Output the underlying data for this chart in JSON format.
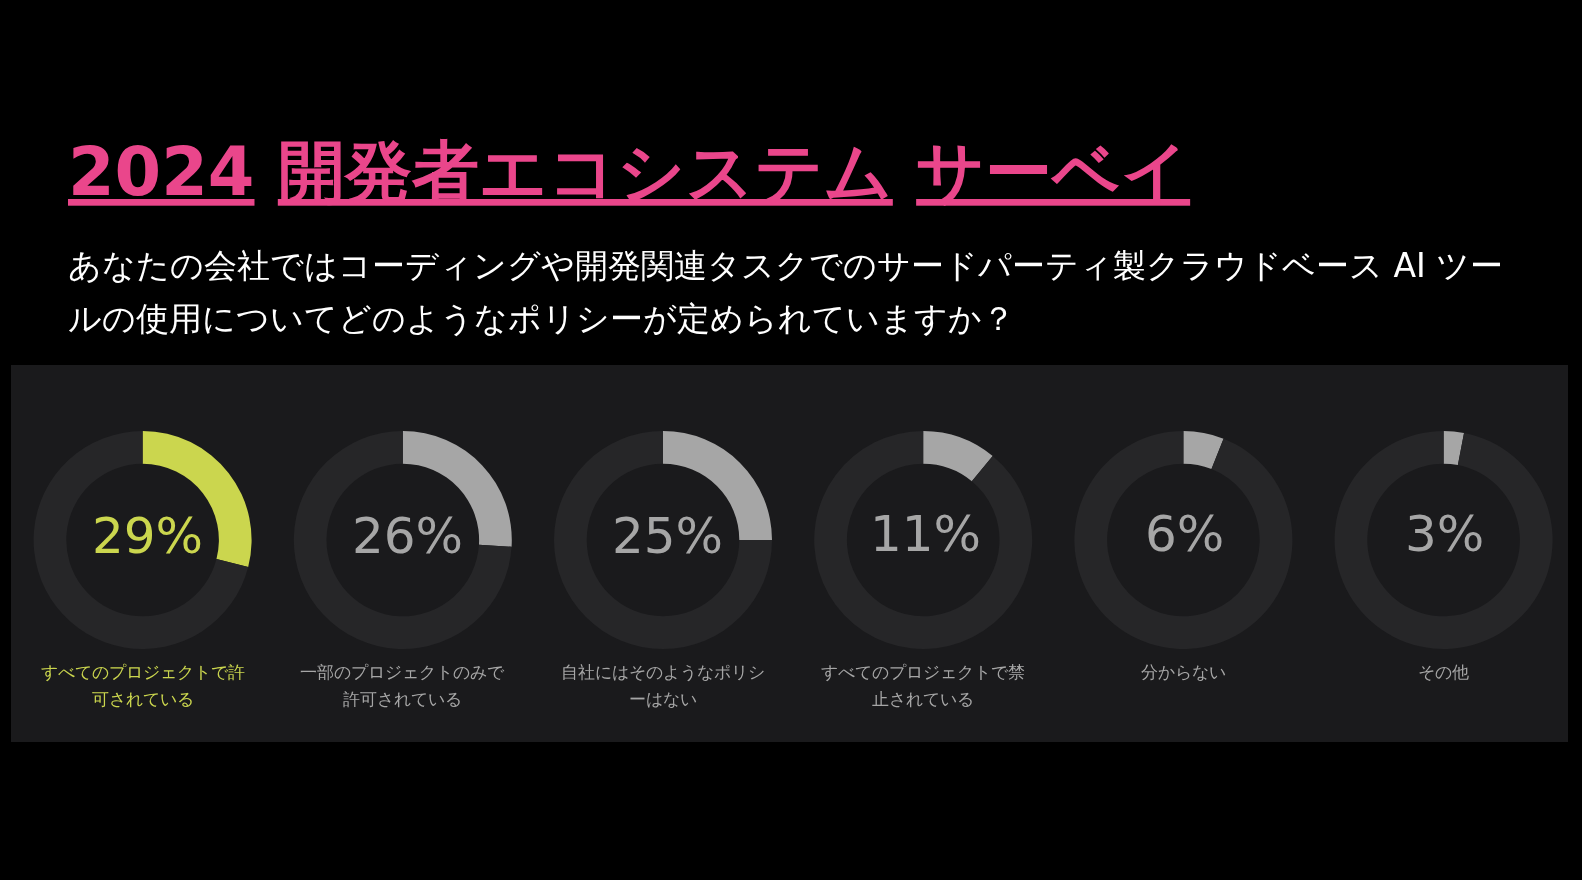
{
  "chart_data": [
    {
      "type": "donut",
      "title": "2024 開発者エコシステム サーベイ",
      "subtitle": "あなたの会社ではコーディングや開発関連タスクでのサードパーティ製クラウドベース AI ツールの使用についてどのようなポリシーが定められていますか？",
      "xlabel": "すべてのプロジェクトで許可されている",
      "categories": [
        null,
        null
      ],
      "values": [
        29,
        71
      ],
      "colors": [
        "#cbd64e",
        "#262628"
      ],
      "value_labels": [
        "29%",
        null
      ]
    },
    {
      "type": "donut",
      "xlabel": "一部のプロジェクトのみで許可されている",
      "categories": [
        null,
        null
      ],
      "values": [
        26,
        74
      ],
      "colors": [
        "#a6a6a6",
        "#262628"
      ],
      "value_labels": [
        "26%",
        null
      ]
    },
    {
      "type": "donut",
      "xlabel": "自社にはそのようなポリシーはない",
      "categories": [
        null,
        null
      ],
      "values": [
        25,
        75
      ],
      "colors": [
        "#a6a6a6",
        "#262628"
      ],
      "value_labels": [
        "25%",
        null
      ]
    },
    {
      "type": "donut",
      "xlabel": "すべてのプロジェクトで禁止されている",
      "categories": [
        null,
        null
      ],
      "values": [
        11,
        89
      ],
      "colors": [
        "#a6a6a6",
        "#262628"
      ],
      "value_labels": [
        "11%",
        null
      ]
    },
    {
      "type": "donut",
      "xlabel": "分からない",
      "categories": [
        null,
        null
      ],
      "values": [
        6,
        94
      ],
      "colors": [
        "#a6a6a6",
        "#262628"
      ],
      "value_labels": [
        "6%",
        null
      ]
    },
    {
      "type": "donut",
      "xlabel": "その他",
      "categories": [
        null,
        null
      ],
      "values": [
        3,
        97
      ],
      "colors": [
        "#a6a6a6",
        "#262628"
      ],
      "value_labels": [
        "3%",
        null
      ]
    }
  ]
}
